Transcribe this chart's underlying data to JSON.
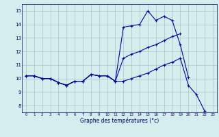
{
  "xlabel": "Graphe des températures (°c)",
  "bg_color": "#d4eeee",
  "line_color": "#0000aa",
  "grid_color": "#a0c8c8",
  "xlim": [
    -0.5,
    23.5
  ],
  "ylim": [
    7.5,
    15.5
  ],
  "xticks": [
    0,
    1,
    2,
    3,
    4,
    5,
    6,
    7,
    8,
    9,
    10,
    11,
    12,
    13,
    14,
    15,
    16,
    17,
    18,
    19,
    20,
    21,
    22,
    23
  ],
  "yticks": [
    8,
    9,
    10,
    11,
    12,
    13,
    14,
    15
  ],
  "series": [
    {
      "x": [
        0,
        1,
        2,
        3,
        4,
        5,
        6,
        7,
        8,
        9,
        10,
        11,
        12,
        13,
        14,
        15,
        16,
        17,
        18,
        19,
        20
      ],
      "y": [
        10.2,
        10.2,
        10.0,
        10.0,
        9.7,
        9.5,
        9.8,
        9.8,
        10.3,
        10.2,
        10.2,
        9.8,
        13.8,
        13.9,
        14.0,
        15.0,
        14.3,
        14.6,
        14.3,
        12.5,
        10.1
      ]
    },
    {
      "x": [
        0,
        1,
        2,
        3,
        4,
        5,
        6,
        7,
        8,
        9,
        10,
        11,
        12,
        13,
        14,
        15,
        16,
        17,
        18,
        19
      ],
      "y": [
        10.2,
        10.2,
        10.0,
        10.0,
        9.7,
        9.5,
        9.8,
        9.8,
        10.3,
        10.2,
        10.2,
        9.8,
        11.5,
        11.8,
        12.0,
        12.3,
        12.5,
        12.8,
        13.1,
        13.3
      ]
    },
    {
      "x": [
        0,
        1,
        2,
        3,
        4,
        5,
        6,
        7,
        8,
        9,
        10,
        11,
        12,
        13,
        14,
        15,
        16,
        17,
        18,
        19,
        20,
        21,
        22
      ],
      "y": [
        10.2,
        10.2,
        10.0,
        10.0,
        9.7,
        9.5,
        9.8,
        9.8,
        10.3,
        10.2,
        10.2,
        9.8,
        9.8,
        10.0,
        10.2,
        10.4,
        10.7,
        11.0,
        11.2,
        11.5,
        9.5,
        8.8,
        7.6
      ]
    }
  ]
}
